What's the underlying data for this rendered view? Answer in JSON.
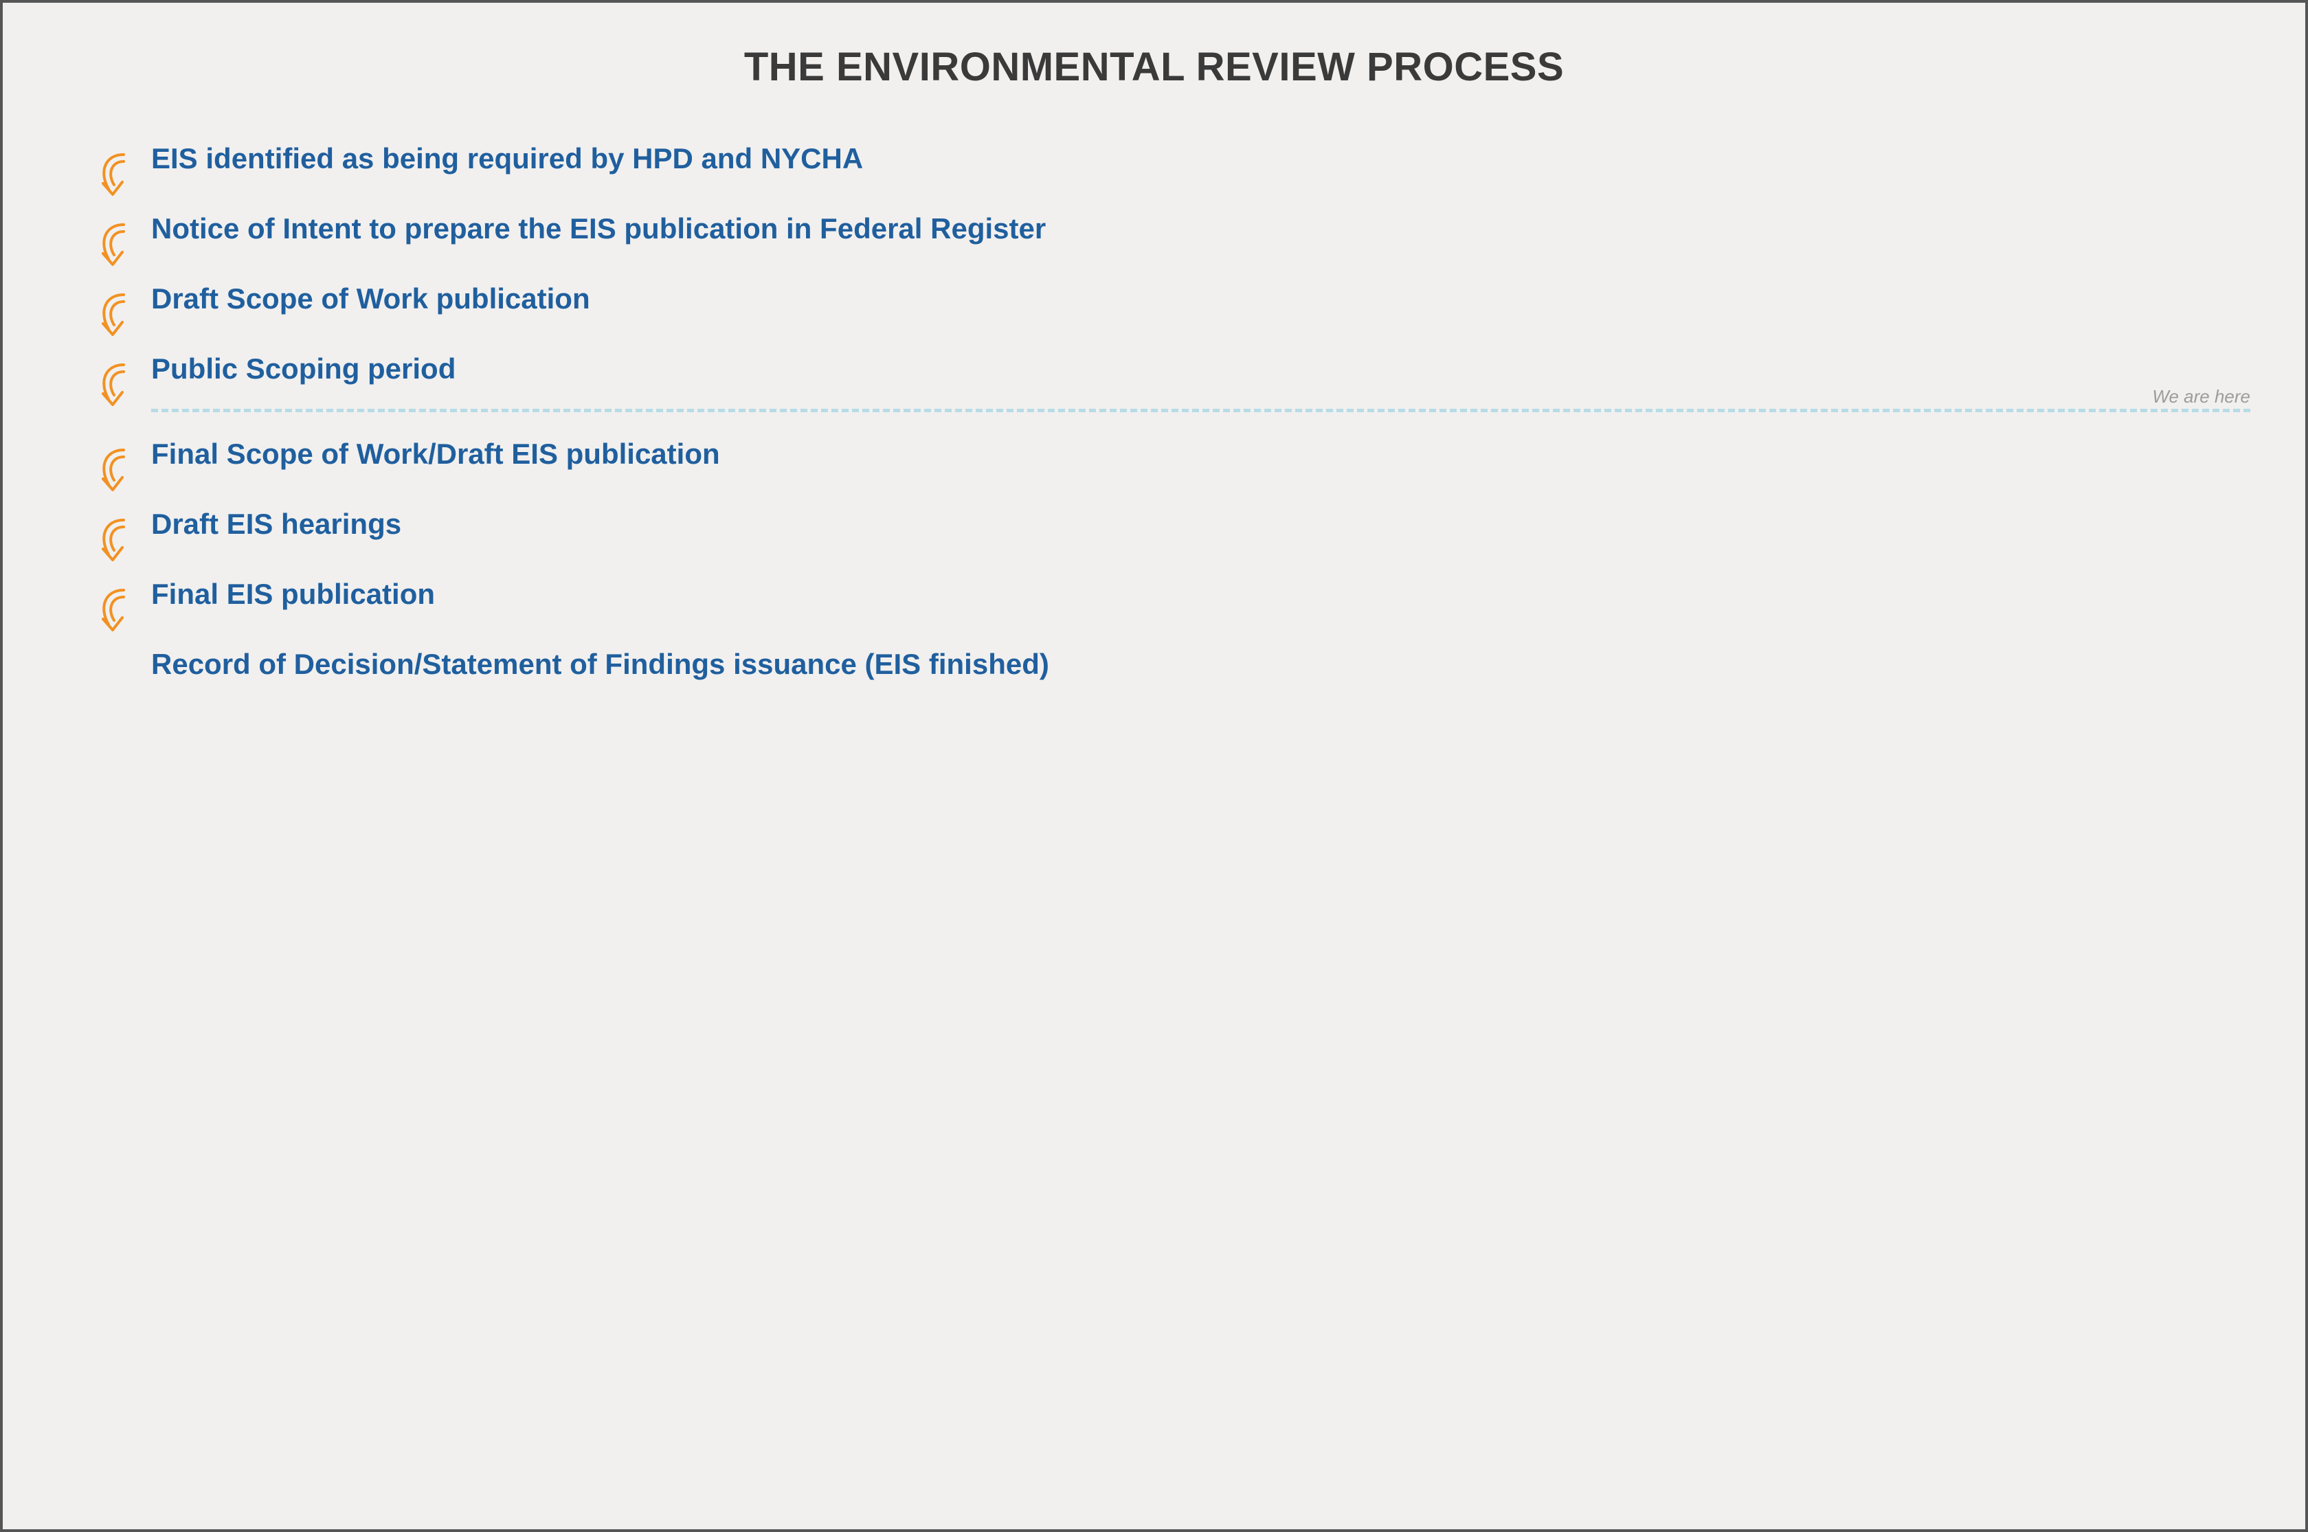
{
  "title": {
    "text": "THE ENVIRONMENTAL REVIEW PROCESS",
    "color": "#3a3a3a",
    "fontsize": 58
  },
  "steps": {
    "label_color": "#205f9e",
    "label_fontsize": 42,
    "items": [
      "EIS identified as being required by HPD and NYCHA",
      "Notice of Intent to prepare the EIS publication in Federal Register",
      "Draft Scope of Work publication",
      "Public Scoping period",
      "Final Scope of Work/Draft EIS publication",
      "Draft EIS hearings",
      "Final EIS publication",
      "Record of Decision/Statement of Findings issuance (EIS finished)"
    ]
  },
  "arrow": {
    "stroke": "#f29122",
    "stroke_width": 4
  },
  "divider": {
    "after_step_index": 3,
    "color": "#b7dce6",
    "dash_width": 5,
    "marker_text": "We are here",
    "marker_color": "#9c9c9c",
    "marker_fontsize": 26
  },
  "background": "#f1f0ef",
  "border_color": "#555555"
}
